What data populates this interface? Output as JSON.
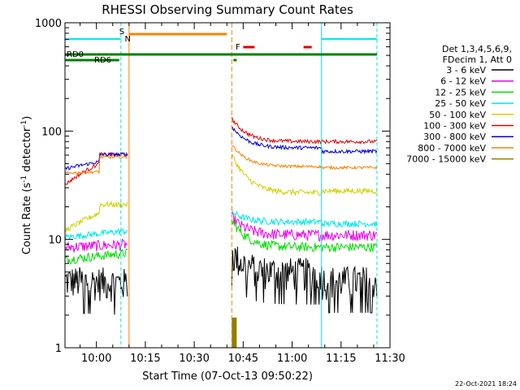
{
  "chart_data": {
    "type": "line",
    "title": "RHESSI Observing Summary Count Rates",
    "xlabel": "Start Time (07-Oct-13 09:50:22)",
    "ylabel_main": "Count Rate (s",
    "ylabel_sup1": "-1",
    "ylabel_mid": " detector",
    "ylabel_sup2": "-1",
    "ylabel_end": ")",
    "yscale": "log",
    "ylim": [
      1,
      1000
    ],
    "xlim": [
      "09:50:22",
      "11:30:00"
    ],
    "x_ticks": [
      "10:00",
      "10:15",
      "10:30",
      "10:45",
      "11:00",
      "11:15",
      "11:30"
    ],
    "y_ticks": [
      "1",
      "10",
      "100",
      "1000"
    ],
    "legend_header": [
      "Det 1,3,4,5,6,9,",
      "FDecim 1, Att 0"
    ],
    "legend_placement": "right",
    "timestamp": "22-Oct-2021 18:24",
    "series": [
      {
        "name": "3 - 6 keV",
        "color": "#000000"
      },
      {
        "name": "6 - 12 keV",
        "color": "#ee00ee"
      },
      {
        "name": "12 - 25 keV",
        "color": "#00e000"
      },
      {
        "name": "25 - 50 keV",
        "color": "#00e8e8"
      },
      {
        "name": "50 - 100 keV",
        "color": "#d0d000"
      },
      {
        "name": "100 - 300 keV",
        "color": "#e00000"
      },
      {
        "name": "300 - 800 keV",
        "color": "#0000dd"
      },
      {
        "name": "800 - 7000 keV",
        "color": "#ff8000"
      },
      {
        "name": "7000 - 15000 keV",
        "color": "#908000"
      }
    ],
    "flag_labels": {
      "saa": "S",
      "night": "N",
      "flare": "F",
      "rd0": "RD0",
      "rd6": "RD6"
    },
    "flag_colors": {
      "saa": "#ff8000",
      "night": "#00e8e8",
      "flare": "#e00000",
      "decim": "#008000"
    }
  }
}
